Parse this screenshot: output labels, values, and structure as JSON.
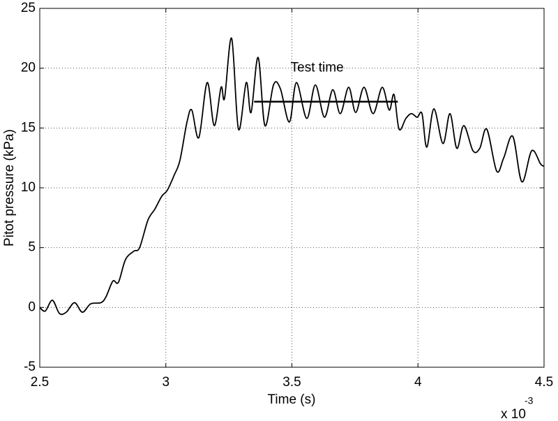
{
  "chart_data": {
    "type": "line",
    "xlabel": "Time (s)",
    "ylabel": "Pitot pressure (kPa)",
    "x_multiplier": {
      "base": "x 10",
      "exponent": "-3"
    },
    "xlim": [
      2.5,
      4.5
    ],
    "xticks": [
      2.5,
      3,
      3.5,
      4,
      4.5
    ],
    "ylim": [
      -5,
      25
    ],
    "yticks": [
      -5,
      0,
      5,
      10,
      15,
      20,
      25
    ],
    "grid": true,
    "series": [
      {
        "color": "#000000",
        "x": [
          2.5,
          2.522,
          2.55,
          2.578,
          2.605,
          2.638,
          2.669,
          2.702,
          2.743,
          2.763,
          2.79,
          2.812,
          2.84,
          2.873,
          2.896,
          2.929,
          2.956,
          2.984,
          3.006,
          3.034,
          3.056,
          3.084,
          3.103,
          3.131,
          3.164,
          3.192,
          3.219,
          3.233,
          3.261,
          3.288,
          3.319,
          3.338,
          3.366,
          3.393,
          3.427,
          3.454,
          3.49,
          3.518,
          3.559,
          3.593,
          3.629,
          3.662,
          3.692,
          3.725,
          3.753,
          3.786,
          3.822,
          3.858,
          3.886,
          3.905,
          3.925,
          3.952,
          3.974,
          3.997,
          4.016,
          4.035,
          4.063,
          4.099,
          4.127,
          4.154,
          4.182,
          4.218,
          4.245,
          4.273,
          4.312,
          4.34,
          4.376,
          4.412,
          4.451,
          4.486,
          4.5
        ],
        "values": [
          0,
          -0.3,
          0.6,
          -0.5,
          -0.4,
          0.4,
          -0.4,
          0.3,
          0.4,
          0.9,
          2.2,
          2.1,
          4.0,
          4.7,
          5.0,
          7.3,
          8.2,
          9.3,
          9.8,
          11.1,
          12.3,
          15.5,
          16.5,
          14.2,
          18.8,
          15.2,
          18.4,
          17.5,
          22.5,
          14.9,
          18.8,
          16.3,
          20.9,
          15.2,
          18.6,
          18.3,
          15.5,
          18.8,
          15.8,
          18.6,
          15.9,
          18.2,
          16.2,
          18.4,
          16.3,
          18.4,
          16.2,
          18.4,
          16.5,
          17.8,
          14.9,
          15.8,
          16.2,
          15.9,
          16.2,
          13.4,
          16.6,
          13.7,
          16.2,
          13.3,
          15.2,
          13.1,
          13.3,
          14.9,
          11.4,
          12.5,
          14.3,
          10.5,
          13.1,
          12.0,
          11.8
        ]
      }
    ],
    "annotations": [
      {
        "text": "Test time",
        "x": 3.6,
        "y": 20,
        "line_x": [
          3.35,
          3.92
        ],
        "line_y": 17.2
      }
    ]
  }
}
